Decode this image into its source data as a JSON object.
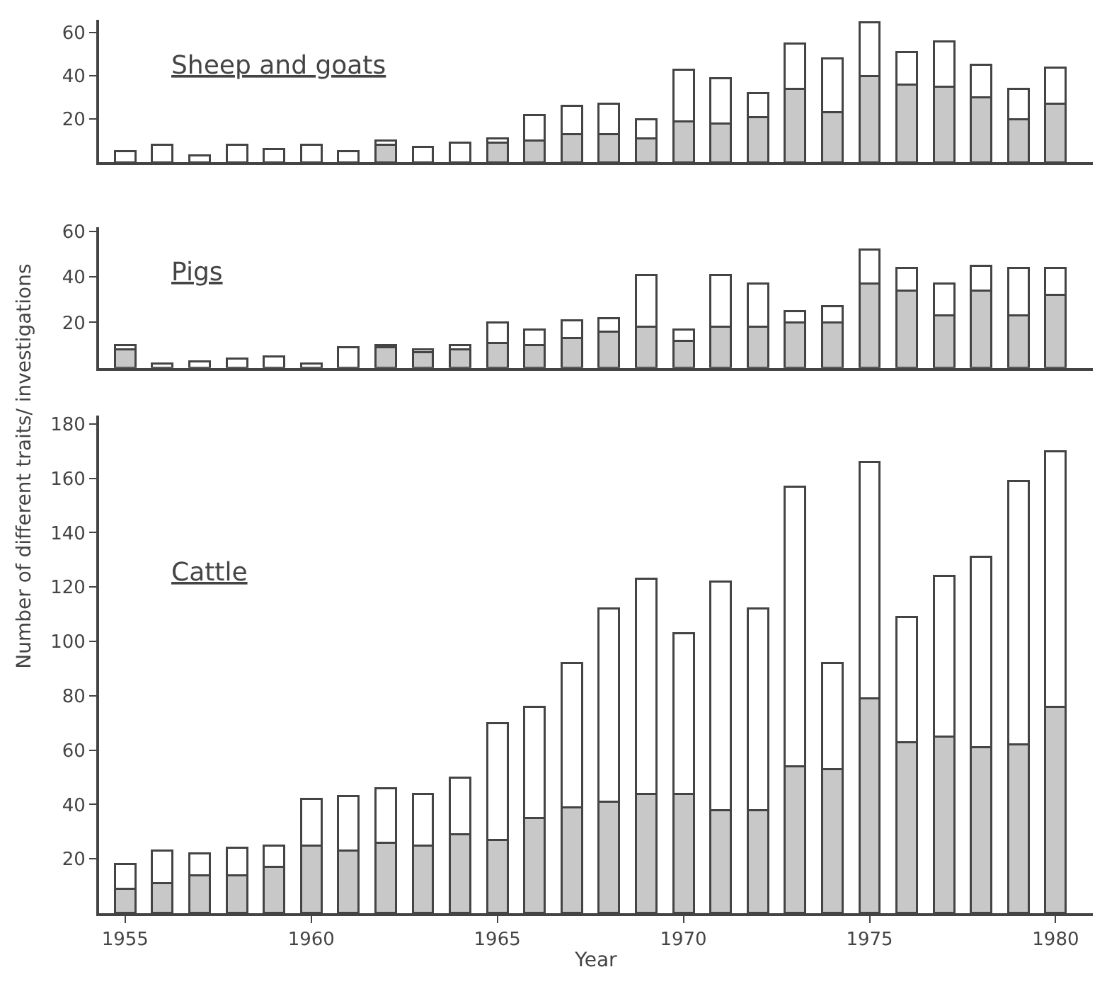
{
  "chart_data": [
    {
      "type": "bar",
      "title": "Sheep and goats",
      "stacked": true,
      "tick_labels": "y",
      "x": [
        1955,
        1956,
        1957,
        1958,
        1959,
        1960,
        1961,
        1962,
        1963,
        1964,
        1965,
        1966,
        1967,
        1968,
        1969,
        1970,
        1971,
        1972,
        1973,
        1974,
        1975,
        1976,
        1977,
        1978,
        1979,
        1980
      ],
      "xlim": [
        1954.3,
        1981
      ],
      "ylim": [
        0,
        66
      ],
      "yticks": [
        20,
        40,
        60
      ],
      "series": [
        {
          "color": "#c8c8c8",
          "values": [
            0,
            0,
            0,
            0,
            0,
            0,
            0,
            8,
            0,
            0,
            9,
            10,
            13,
            13,
            11,
            19,
            18,
            21,
            34,
            23,
            40,
            36,
            35,
            30,
            20,
            27
          ]
        },
        {
          "color": "#ffffff",
          "values": [
            5,
            8,
            3,
            8,
            6,
            8,
            5,
            2,
            7,
            9,
            2,
            12,
            13,
            14,
            9,
            24,
            21,
            11,
            21,
            25,
            25,
            15,
            21,
            15,
            14,
            17
          ]
        }
      ]
    },
    {
      "type": "bar",
      "title": "Pigs",
      "stacked": true,
      "tick_labels": "y",
      "x": [
        1955,
        1956,
        1957,
        1958,
        1959,
        1960,
        1961,
        1962,
        1963,
        1964,
        1965,
        1966,
        1967,
        1968,
        1969,
        1970,
        1971,
        1972,
        1973,
        1974,
        1975,
        1976,
        1977,
        1978,
        1979,
        1980
      ],
      "xlim": [
        1954.3,
        1981
      ],
      "ylim": [
        0,
        62
      ],
      "yticks": [
        20,
        40,
        60
      ],
      "series": [
        {
          "color": "#c8c8c8",
          "values": [
            8,
            0,
            0,
            0,
            0,
            0,
            0,
            9,
            7,
            8,
            11,
            10,
            13,
            16,
            18,
            12,
            18,
            18,
            20,
            20,
            37,
            34,
            23,
            34,
            23,
            32
          ]
        },
        {
          "color": "#ffffff",
          "values": [
            2,
            2,
            3,
            4,
            5,
            2,
            9,
            1,
            1,
            2,
            9,
            7,
            8,
            6,
            23,
            5,
            23,
            19,
            5,
            7,
            15,
            10,
            14,
            11,
            21,
            12
          ]
        }
      ]
    },
    {
      "type": "bar",
      "title": "Cattle",
      "stacked": true,
      "xlabel": "Year",
      "ylabel": "Number of different traits/ investigations",
      "x": [
        1955,
        1956,
        1957,
        1958,
        1959,
        1960,
        1961,
        1962,
        1963,
        1964,
        1965,
        1966,
        1967,
        1968,
        1969,
        1970,
        1971,
        1972,
        1973,
        1974,
        1975,
        1976,
        1977,
        1978,
        1979,
        1980
      ],
      "xlim": [
        1954.3,
        1981
      ],
      "xticks": [
        1955,
        1960,
        1965,
        1970,
        1975,
        1980
      ],
      "ylim": [
        0,
        183
      ],
      "yticks": [
        20,
        40,
        60,
        80,
        100,
        120,
        140,
        160,
        180
      ],
      "series": [
        {
          "color": "#c8c8c8",
          "values": [
            9,
            11,
            14,
            14,
            17,
            25,
            23,
            26,
            25,
            29,
            27,
            35,
            39,
            41,
            44,
            44,
            38,
            38,
            54,
            53,
            79,
            63,
            65,
            61,
            62,
            76
          ]
        },
        {
          "color": "#ffffff",
          "values": [
            9,
            12,
            8,
            10,
            8,
            17,
            20,
            20,
            19,
            21,
            43,
            41,
            53,
            71,
            79,
            59,
            84,
            74,
            103,
            39,
            87,
            46,
            59,
            70,
            97,
            94
          ]
        }
      ]
    }
  ]
}
